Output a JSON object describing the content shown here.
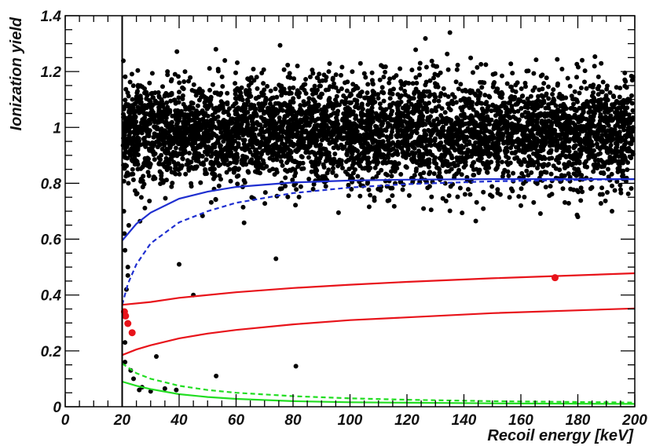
{
  "chart_data": {
    "type": "scatter",
    "title": "",
    "xlabel": "Recoil energy [keV]",
    "ylabel": "Ionization yield",
    "xlim": [
      0,
      200
    ],
    "ylim": [
      0,
      1.4
    ],
    "x_ticks": [
      "0",
      "20",
      "40",
      "60",
      "80",
      "100",
      "120",
      "140",
      "160",
      "180",
      "200"
    ],
    "y_ticks": [
      "0",
      "0.2",
      "0.4",
      "0.6",
      "0.8",
      "1",
      "1.2",
      "1.4"
    ],
    "grid": false,
    "legend": "none",
    "threshold_line": {
      "x": 20,
      "color": "#000000"
    },
    "colors": {
      "events": "#000000",
      "nuclear_recoil_band": "#e8131a",
      "electron_recoil_band": "#1f2fd0",
      "heat_only_band": "#22dd22",
      "candidates": "#e8131a"
    },
    "band_curves": [
      {
        "color": "#1f2fd0",
        "style": "solid",
        "points": [
          [
            20,
            0.595
          ],
          [
            25,
            0.655
          ],
          [
            30,
            0.695
          ],
          [
            40,
            0.745
          ],
          [
            50,
            0.77
          ],
          [
            60,
            0.787
          ],
          [
            80,
            0.803
          ],
          [
            100,
            0.81
          ],
          [
            120,
            0.813
          ],
          [
            150,
            0.815
          ],
          [
            200,
            0.815
          ]
        ]
      },
      {
        "color": "#1f2fd0",
        "style": "dashed",
        "points": [
          [
            20,
            0.365
          ],
          [
            22,
            0.44
          ],
          [
            25,
            0.51
          ],
          [
            30,
            0.585
          ],
          [
            40,
            0.66
          ],
          [
            50,
            0.7
          ],
          [
            60,
            0.73
          ],
          [
            80,
            0.765
          ],
          [
            100,
            0.785
          ],
          [
            120,
            0.797
          ],
          [
            150,
            0.807
          ],
          [
            200,
            0.815
          ]
        ]
      },
      {
        "color": "#e8131a",
        "style": "solid",
        "points": [
          [
            20,
            0.365
          ],
          [
            30,
            0.375
          ],
          [
            40,
            0.39
          ],
          [
            60,
            0.41
          ],
          [
            80,
            0.425
          ],
          [
            100,
            0.437
          ],
          [
            120,
            0.447
          ],
          [
            150,
            0.46
          ],
          [
            200,
            0.478
          ]
        ]
      },
      {
        "color": "#e8131a",
        "style": "solid",
        "points": [
          [
            20,
            0.185
          ],
          [
            25,
            0.205
          ],
          [
            30,
            0.22
          ],
          [
            40,
            0.245
          ],
          [
            50,
            0.262
          ],
          [
            60,
            0.275
          ],
          [
            80,
            0.295
          ],
          [
            100,
            0.31
          ],
          [
            120,
            0.32
          ],
          [
            150,
            0.335
          ],
          [
            200,
            0.352
          ]
        ]
      },
      {
        "color": "#22dd22",
        "style": "dashed",
        "points": [
          [
            20,
            0.155
          ],
          [
            25,
            0.12
          ],
          [
            30,
            0.1
          ],
          [
            40,
            0.075
          ],
          [
            50,
            0.06
          ],
          [
            60,
            0.05
          ],
          [
            80,
            0.038
          ],
          [
            100,
            0.03
          ],
          [
            120,
            0.025
          ],
          [
            150,
            0.02
          ],
          [
            200,
            0.015
          ]
        ]
      },
      {
        "color": "#22dd22",
        "style": "solid",
        "points": [
          [
            20,
            0.09
          ],
          [
            25,
            0.075
          ],
          [
            30,
            0.063
          ],
          [
            40,
            0.045
          ],
          [
            50,
            0.035
          ],
          [
            60,
            0.028
          ],
          [
            80,
            0.02
          ],
          [
            100,
            0.016
          ],
          [
            150,
            0.012
          ],
          [
            200,
            0.01
          ]
        ]
      }
    ],
    "event_band": {
      "y_center": 0.98,
      "y_spread": 0.095,
      "x_min": 20.3,
      "x_max": 199.5,
      "count": 4800
    },
    "sparse_events": [
      [
        40,
        0.51
      ],
      [
        45,
        0.4
      ],
      [
        74,
        0.53
      ],
      [
        81,
        0.145
      ],
      [
        53,
        0.11
      ],
      [
        39,
        0.06
      ],
      [
        27,
        0.07
      ],
      [
        30,
        0.055
      ],
      [
        24,
        0.1
      ],
      [
        23,
        0.13
      ],
      [
        26,
        0.06
      ],
      [
        21,
        0.23
      ],
      [
        21.5,
        0.42
      ],
      [
        22,
        0.5
      ],
      [
        21,
        0.56
      ],
      [
        20.6,
        0.7
      ],
      [
        21,
        0.16
      ],
      [
        20.8,
        0.62
      ],
      [
        22,
        0.47
      ],
      [
        180,
        0.68
      ],
      [
        192,
        0.7
      ],
      [
        160,
        0.72
      ],
      [
        32,
        0.18
      ],
      [
        35,
        0.065
      ]
    ],
    "candidate_events": [
      [
        20.8,
        0.34
      ],
      [
        21.2,
        0.325
      ],
      [
        22,
        0.298
      ],
      [
        23.5,
        0.265
      ],
      [
        172,
        0.462
      ]
    ]
  }
}
